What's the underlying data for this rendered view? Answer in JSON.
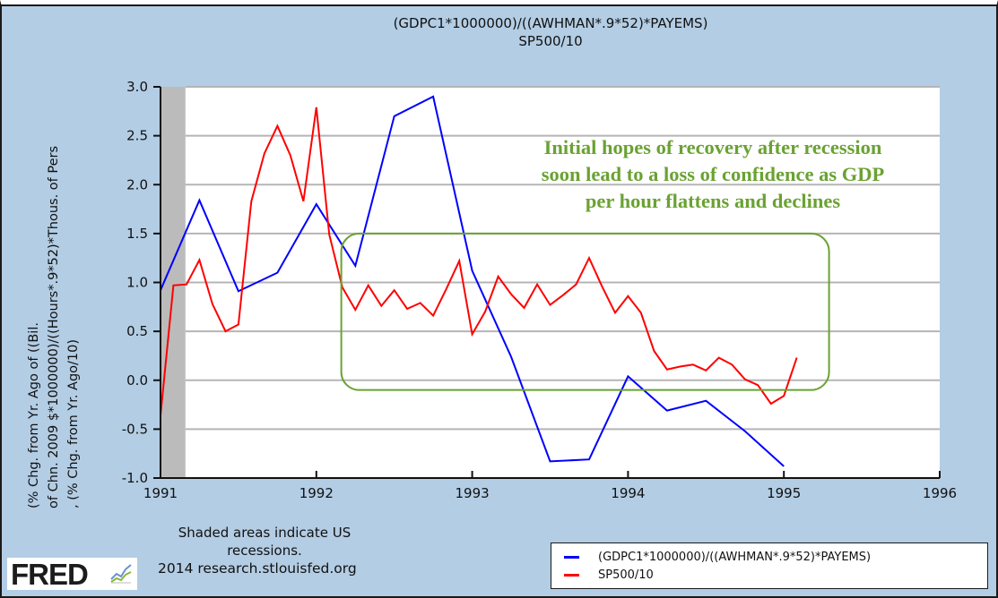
{
  "chart_data": {
    "type": "line",
    "title": [
      "(GDPC1*1000000)/((AWHMAN*.9*52)*PAYEMS)",
      "SP500/10"
    ],
    "ylabel": [
      "(% Chg. from Yr. Ago of ((Bil.",
      "of Chn. 2009 $*1000000)/((Hours*.9*52)*Thous. of Pers",
      ", (% Chg. from Yr. Ago/10)"
    ],
    "xlabel": "",
    "xlim": [
      1991,
      1996
    ],
    "ylim": [
      -1.0,
      3.0
    ],
    "x_ticks": [
      1991,
      1992,
      1993,
      1994,
      1995,
      1996
    ],
    "x_tick_labels": [
      "1991",
      "1992",
      "1993",
      "1994",
      "1995",
      "1996"
    ],
    "y_ticks": [
      -1.0,
      -0.5,
      0.0,
      0.5,
      1.0,
      1.5,
      2.0,
      2.5,
      3.0
    ],
    "y_tick_labels": [
      "-1.0",
      "-0.5",
      "0.0",
      "0.5",
      "1.0",
      "1.5",
      "2.0",
      "2.5",
      "3.0"
    ],
    "grid": true,
    "legend_position": "bottom-right",
    "recession_shading": [
      {
        "start": 1991.0,
        "end": 1991.16,
        "color": "#bbbbbb"
      }
    ],
    "series": [
      {
        "name": "(GDPC1*1000000)/((AWHMAN*.9*52)*PAYEMS)",
        "color": "#0000ff",
        "frequency": "quarterly",
        "x": [
          1991.0,
          1991.25,
          1991.5,
          1991.75,
          1992.0,
          1992.25,
          1992.5,
          1992.75,
          1993.0,
          1993.25,
          1993.5,
          1993.75,
          1994.0,
          1994.25,
          1994.5,
          1994.75,
          1995.0
        ],
        "values": [
          0.92,
          1.84,
          0.91,
          1.1,
          1.8,
          1.17,
          2.7,
          2.9,
          1.12,
          0.24,
          -0.83,
          -0.81,
          0.04,
          -0.31,
          -0.21,
          -0.52,
          -0.88
        ]
      },
      {
        "name": "SP500/10",
        "color": "#ff0000",
        "frequency": "monthly",
        "x": [
          1991.0,
          1991.083,
          1991.167,
          1991.25,
          1991.333,
          1991.417,
          1991.5,
          1991.583,
          1991.667,
          1991.75,
          1991.833,
          1991.917,
          1992.0,
          1992.083,
          1992.167,
          1992.25,
          1992.333,
          1992.417,
          1992.5,
          1992.583,
          1992.667,
          1992.75,
          1992.833,
          1992.917,
          1993.0,
          1993.083,
          1993.167,
          1993.25,
          1993.333,
          1993.417,
          1993.5,
          1993.583,
          1993.667,
          1993.75,
          1993.833,
          1993.917,
          1994.0,
          1994.083,
          1994.167,
          1994.25,
          1994.333,
          1994.417,
          1994.5,
          1994.583,
          1994.667,
          1994.75,
          1994.833,
          1994.917,
          1995.0,
          1995.083
        ],
        "values": [
          -0.36,
          0.97,
          0.98,
          1.23,
          0.78,
          0.5,
          0.57,
          1.83,
          2.32,
          2.6,
          2.3,
          1.83,
          2.79,
          1.49,
          0.95,
          0.72,
          0.97,
          0.76,
          0.92,
          0.73,
          0.79,
          0.66,
          0.93,
          1.22,
          0.47,
          0.7,
          1.06,
          0.88,
          0.74,
          0.98,
          0.77,
          0.87,
          0.98,
          1.25,
          0.96,
          0.69,
          0.86,
          0.69,
          0.3,
          0.11,
          0.14,
          0.16,
          0.1,
          0.23,
          0.16,
          0.01,
          -0.05,
          -0.24,
          -0.16,
          0.23
        ]
      }
    ],
    "annotations": [
      {
        "text": "Initial hopes of recovery after recession soon lead to a loss of confidence as GDP per hour flattens and declines",
        "color": "#6aa232",
        "box": {
          "x0": 1992.16,
          "x1": 1995.29,
          "y0": -0.1,
          "y1": 1.5,
          "color": "#6aa232"
        }
      }
    ]
  },
  "annotation_lines": [
    "Initial hopes of recovery after recession",
    "soon lead to a loss of confidence as GDP",
    "per hour flattens and declines"
  ],
  "footer": {
    "recession_note_line1": "Shaded areas indicate US",
    "recession_note_line2": "recessions.",
    "copyright": "2014 research.stlouisfed.org",
    "logo_text": "FRED",
    "logo_icon": "chart-line-icon"
  },
  "legend": {
    "items": [
      {
        "label": "(GDPC1*1000000)/((AWHMAN*.9*52)*PAYEMS)",
        "color": "#0000ff"
      },
      {
        "label": "SP500/10",
        "color": "#ff0000"
      }
    ]
  },
  "colors": {
    "background": "#b3cde4",
    "plot_background": "#ffffff",
    "grid": "#b5b5b5",
    "recession": "#bbbbbb",
    "annotation": "#6aa232"
  }
}
